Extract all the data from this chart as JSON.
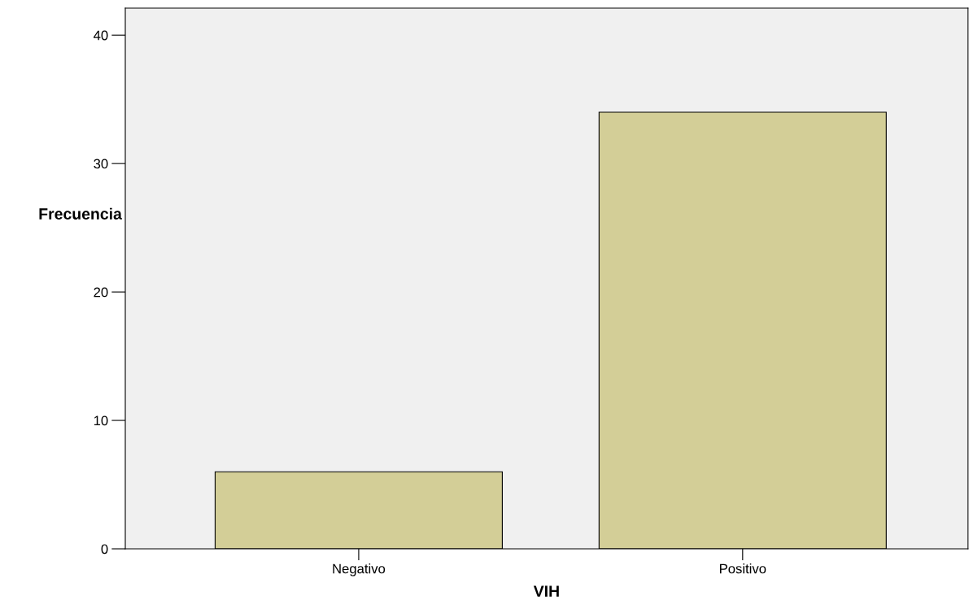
{
  "chart_data": {
    "type": "bar",
    "xlabel": "VIH",
    "ylabel": "Frecuencia",
    "categories": [
      "Negativo",
      "Positivo"
    ],
    "series": [
      {
        "color": "#d3ce97",
        "values": [
          6,
          34
        ]
      }
    ],
    "ylim": [
      0,
      42.1
    ],
    "yticks": [
      0,
      10,
      20,
      30,
      40
    ],
    "grid": false
  }
}
